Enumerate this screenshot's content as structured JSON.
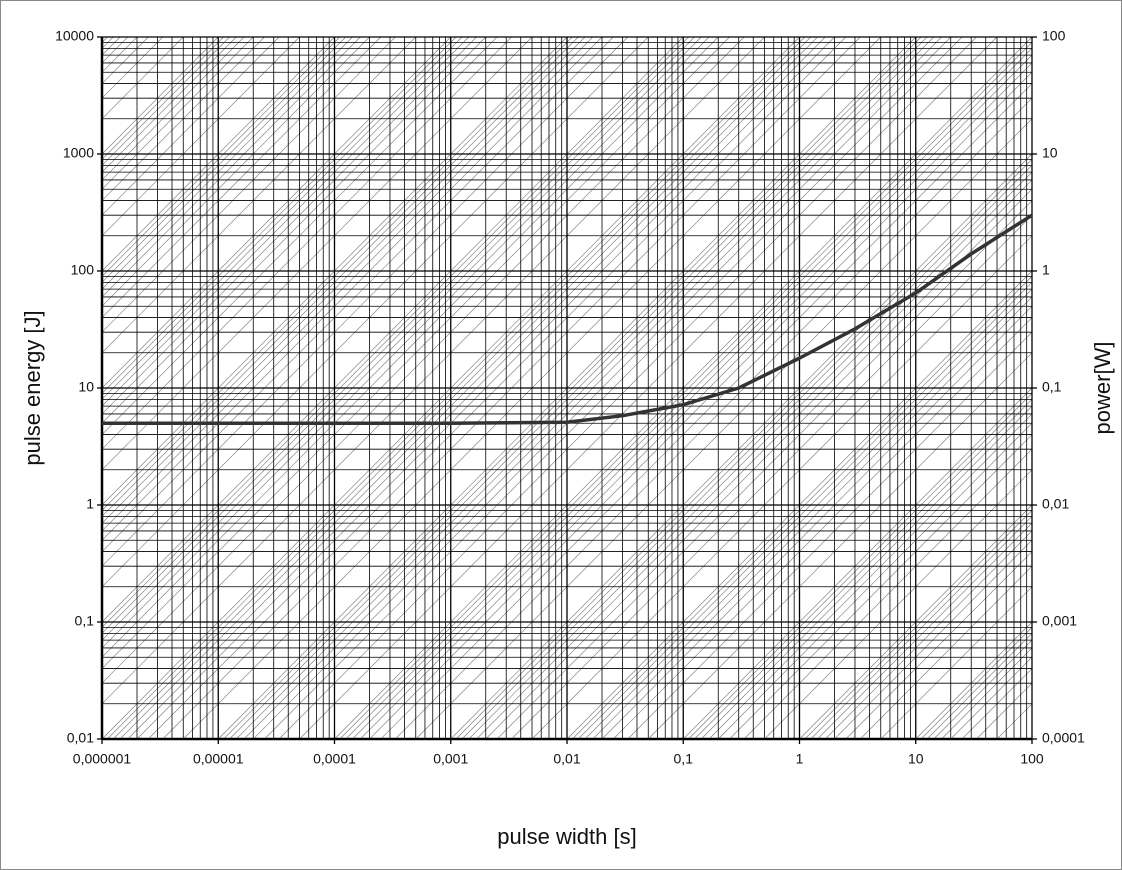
{
  "chart_data": {
    "type": "line",
    "x_label": "pulse width [s]",
    "y_label": "pulse energy [J]",
    "y2_label": "power[W]",
    "log_x": true,
    "log_y": true,
    "grid": true,
    "minor_grid": true,
    "power_lines": true,
    "x": [
      1e-06,
      1e-05,
      0.0001,
      0.001,
      0.01,
      0.03,
      0.1,
      0.3,
      1,
      3,
      10,
      30,
      100
    ],
    "series": [
      {
        "color": "#333333",
        "values": [
          5,
          5,
          5,
          5,
          5.1,
          5.8,
          7.2,
          10,
          18,
          32,
          65,
          140,
          300
        ]
      }
    ],
    "xlim": [
      1e-06,
      100
    ],
    "xticks": [
      {
        "value": 1e-06,
        "label": "0,000001"
      },
      {
        "value": 1e-05,
        "label": "0,00001"
      },
      {
        "value": 0.0001,
        "label": "0,0001"
      },
      {
        "value": 0.001,
        "label": "0,001"
      },
      {
        "value": 0.01,
        "label": "0,01"
      },
      {
        "value": 0.1,
        "label": "0,1"
      },
      1,
      10,
      100
    ],
    "ylim": [
      0.01,
      10000
    ],
    "yticks": [
      {
        "value": 0.01,
        "label": "0,01"
      },
      {
        "value": 0.1,
        "label": "0,1"
      },
      1,
      10,
      100,
      1000,
      10000
    ],
    "y2lim": [
      0.0001,
      100
    ],
    "y2ticks": [
      {
        "value": 0.0001,
        "label": "0,0001"
      },
      {
        "value": 0.001,
        "label": "0,001"
      },
      {
        "value": 0.01,
        "label": "0,01"
      },
      {
        "value": 0.1,
        "label": "0,1"
      },
      1,
      10,
      100
    ]
  }
}
